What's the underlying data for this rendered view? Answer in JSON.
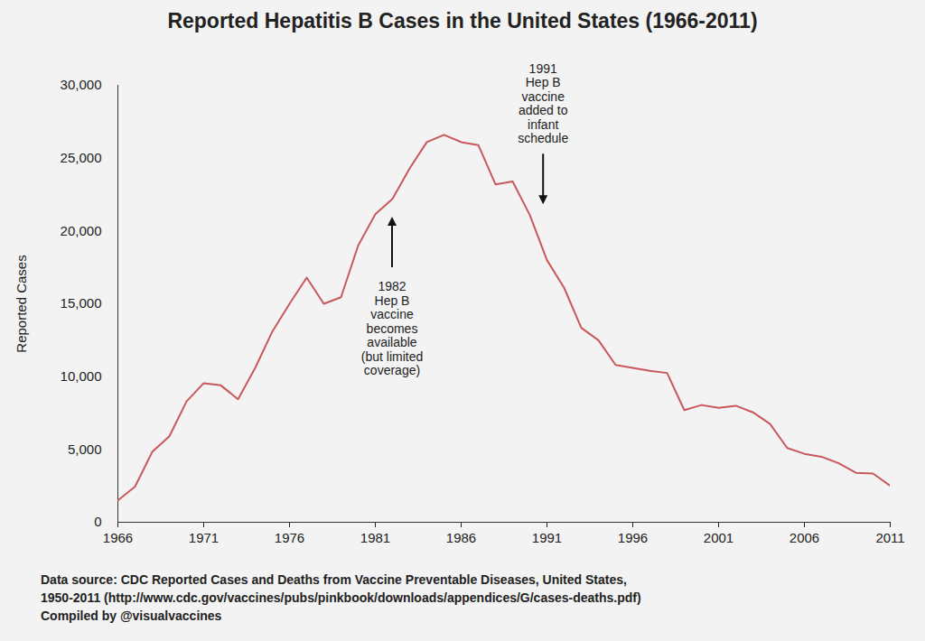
{
  "chart_data": {
    "type": "line",
    "title": "Reported Hepatitis B Cases in the United States (1966-2011)",
    "y_label": "Reported Cases",
    "x": [
      1966,
      1967,
      1968,
      1969,
      1970,
      1971,
      1972,
      1973,
      1974,
      1975,
      1976,
      1977,
      1978,
      1979,
      1980,
      1981,
      1982,
      1983,
      1984,
      1985,
      1986,
      1987,
      1988,
      1989,
      1990,
      1991,
      1992,
      1993,
      1994,
      1995,
      1996,
      1997,
      1998,
      1999,
      2000,
      2001,
      2002,
      2003,
      2004,
      2005,
      2006,
      2007,
      2008,
      2009,
      2010,
      2011
    ],
    "values": [
      1500,
      2450,
      4830,
      5900,
      8300,
      9550,
      9400,
      8450,
      10600,
      13100,
      15000,
      16800,
      15000,
      15450,
      19000,
      21150,
      22200,
      24300,
      26100,
      26600,
      26100,
      25900,
      23200,
      23400,
      21100,
      18000,
      16100,
      13350,
      12500,
      10800,
      10600,
      10400,
      10250,
      7700,
      8050,
      7850,
      8000,
      7550,
      6750,
      5100,
      4700,
      4500,
      4050,
      3400,
      3350,
      2500
    ],
    "color": "#c8585b",
    "xlim": [
      1966,
      2011
    ],
    "xticks": [
      1966,
      1971,
      1976,
      1981,
      1986,
      1991,
      1996,
      2001,
      2006,
      2011
    ],
    "ylim": [
      0,
      30000
    ],
    "yticks": [
      0,
      {
        "value": 5000,
        "label": "5,000"
      },
      {
        "value": 10000,
        "label": "10,000"
      },
      {
        "value": 15000,
        "label": "15,000"
      },
      {
        "value": 20000,
        "label": "20,000"
      },
      {
        "value": 25000,
        "label": "25,000"
      },
      {
        "value": 30000,
        "label": "30,000"
      }
    ],
    "grid": false,
    "annotations": [
      {
        "x": 1982,
        "y": 20950,
        "text": "1982\nHep B\nvaccine\nbecomes\navailable\n(but limited\ncoverage)"
      },
      {
        "x": 1990.8,
        "y": 21800,
        "text": "1991\nHep B\nvaccine\nadded to\ninfant\nschedule"
      }
    ],
    "caption": [
      "Data source: CDC Reported Cases and Deaths from Vaccine Preventable Diseases, United States,",
      "1950-2011 (http://www.cdc.gov/vaccines/pubs/pinkbook/downloads/appendices/G/cases-deaths.pdf)",
      "Compiled by @visualvaccines"
    ]
  }
}
